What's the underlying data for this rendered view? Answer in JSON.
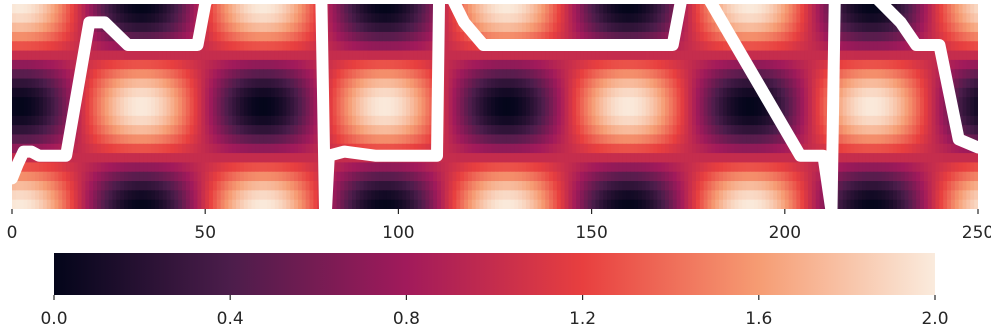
{
  "chart_data": {
    "type": "heatmap",
    "title": "",
    "xlabel": "",
    "ylabel": "",
    "xlim": [
      0,
      250
    ],
    "x_ticks": [
      "0",
      "50",
      "100",
      "150",
      "200",
      "250"
    ],
    "x_tick_values": [
      0,
      50,
      100,
      150,
      200,
      250
    ],
    "grid": false,
    "colormap": "rocket",
    "color_stops": [
      "#03051a",
      "#4c1d4b",
      "#a11a5b",
      "#e83f3f",
      "#f69c73",
      "#faebdd"
    ],
    "heatmap": {
      "description_values": "value = 1 + cos(2*pi*(x - 2)/63) * cos(pi*row), two rows of alternating dark/light cells",
      "x_period": 63,
      "x_offset": 2,
      "rows": 2,
      "vmin": 0.0,
      "vmax": 2.0
    },
    "overlay_series": {
      "color": "#ffffff",
      "points": [
        [
          0,
          0.15
        ],
        [
          1.5,
          0.22
        ],
        [
          3,
          0.28
        ],
        [
          5,
          0.28
        ],
        [
          7,
          0.26
        ],
        [
          10,
          0.26
        ],
        [
          14,
          0.26
        ],
        [
          20,
          0.91
        ],
        [
          24,
          0.91
        ],
        [
          30,
          0.8
        ],
        [
          40,
          0.8
        ],
        [
          48,
          0.8
        ],
        [
          50,
          1.0
        ],
        [
          52,
          1.1
        ],
        [
          80,
          1.1
        ],
        [
          81,
          0.0
        ],
        [
          81,
          -0.1
        ],
        [
          82,
          0.26
        ],
        [
          86,
          0.28
        ],
        [
          94,
          0.26
        ],
        [
          102,
          0.26
        ],
        [
          110,
          0.26
        ],
        [
          110.5,
          1.0
        ],
        [
          111,
          1.1
        ],
        [
          112,
          1.1
        ],
        [
          117,
          0.91
        ],
        [
          122,
          0.8
        ],
        [
          144,
          0.8
        ],
        [
          155,
          0.8
        ],
        [
          170,
          0.8
        ],
        [
          171,
          0.8
        ],
        [
          174,
          1.1
        ],
        [
          178,
          1.1
        ],
        [
          204,
          0.26
        ],
        [
          206,
          0.26
        ],
        [
          210,
          0.26
        ],
        [
          212,
          0.0
        ],
        [
          212,
          -0.1
        ],
        [
          213,
          1.1
        ],
        [
          220,
          1.1
        ],
        [
          230,
          0.91
        ],
        [
          234,
          0.8
        ],
        [
          240,
          0.8
        ],
        [
          245,
          0.34
        ],
        [
          250,
          0.3
        ]
      ]
    },
    "colorbar": {
      "ticks": [
        "0.0",
        "0.4",
        "0.8",
        "1.2",
        "1.6",
        "2.0"
      ],
      "tick_values": [
        0.0,
        0.4,
        0.8,
        1.2,
        1.6,
        2.0
      ],
      "range": [
        0.0,
        2.0
      ],
      "orientation": "horizontal",
      "placement": "bottom"
    }
  }
}
